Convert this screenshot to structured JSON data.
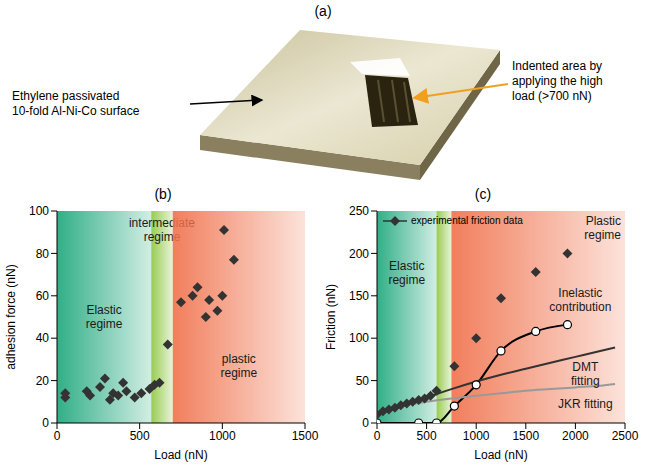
{
  "panel_a": {
    "title": "(a)",
    "surface_label": [
      "Ethylene passivated",
      "10-fold Al-Ni-Co surface"
    ],
    "indent_label": [
      "Indented area by",
      "applying the high",
      "load (>700 nN)"
    ]
  },
  "chart_data": [
    {
      "type": "scatter",
      "title": "(b)",
      "x_label": "Load (nN)",
      "y_label": "adhesion force (nN)",
      "xlim": [
        0,
        1500
      ],
      "xticks": [
        0,
        500,
        1000,
        1500
      ],
      "ylim": [
        0,
        100
      ],
      "yticks": [
        0,
        20,
        40,
        60,
        80,
        100
      ],
      "regions": [
        {
          "label": "Elastic regime",
          "from": 0,
          "to": 570,
          "color": "#1aa679"
        },
        {
          "label": "intermediate regime",
          "from": 570,
          "to": 700,
          "color": "#8dc63f"
        },
        {
          "label": "plastic regime",
          "from": 700,
          "to": 1500,
          "color": "#f0704a"
        }
      ],
      "x": [
        50,
        50,
        180,
        200,
        260,
        290,
        320,
        340,
        370,
        400,
        420,
        470,
        510,
        560,
        590,
        620,
        670,
        750,
        820,
        850,
        900,
        920,
        970,
        1000,
        1010,
        1070
      ],
      "values": [
        12,
        14,
        15,
        13,
        17,
        21,
        11,
        14,
        13,
        19,
        15,
        12,
        14,
        16,
        18,
        19,
        37,
        57,
        60,
        64,
        50,
        58,
        53,
        60,
        91,
        77
      ],
      "color": "#333333",
      "marker": "diamond"
    },
    {
      "type": "line",
      "title": "(c)",
      "x_label": "Load (nN)",
      "y_label": "Friction (nN)",
      "xlim": [
        0,
        2500
      ],
      "xticks": [
        0,
        500,
        1000,
        1500,
        2000,
        2500
      ],
      "ylim": [
        0,
        250
      ],
      "yticks": [
        0,
        50,
        100,
        150,
        200,
        250
      ],
      "legend": "upper left",
      "regions": [
        {
          "label": "Elastic regime",
          "from": 0,
          "to": 600,
          "color": "#1aa679"
        },
        {
          "from": 600,
          "to": 750,
          "color": "#8dc63f"
        },
        {
          "label": "Plastic regime",
          "from": 750,
          "to": 2500,
          "color": "#f0704a"
        }
      ],
      "series": [
        {
          "name": "experimental friction data",
          "type": "scatter",
          "color": "#333333",
          "marker": "diamond",
          "x": [
            0,
            60,
            120,
            180,
            240,
            300,
            360,
            420,
            480,
            540,
            600,
            780,
            1000,
            1250,
            1600,
            1920
          ],
          "values": [
            10,
            14,
            16,
            18,
            21,
            23,
            25,
            27,
            29,
            32,
            38,
            67,
            100,
            147,
            178,
            200
          ]
        },
        {
          "type": "line",
          "color": "#000000",
          "marker": "open_circle",
          "line_style": "solid",
          "x": [
            0,
            420,
            600,
            780,
            1000,
            1250,
            1600,
            1920
          ],
          "values": [
            0,
            0,
            0,
            20,
            45,
            85,
            108,
            116
          ]
        },
        {
          "type": "line",
          "color": "#333333",
          "marker": "none",
          "line_style": "solid",
          "x": [
            0,
            250,
            500,
            750,
            1000,
            1250,
            1500,
            1750,
            2000,
            2250,
            2400
          ],
          "values": [
            10,
            20,
            30,
            40,
            49,
            57,
            64,
            71,
            78,
            85,
            89
          ]
        },
        {
          "type": "line",
          "color": "#999999",
          "marker": "none",
          "line_style": "solid",
          "x": [
            0,
            250,
            500,
            750,
            1000,
            1250,
            1500,
            1750,
            2000,
            2250,
            2400
          ],
          "values": [
            13,
            20,
            25,
            29,
            32,
            35,
            38,
            40,
            42,
            44,
            46
          ]
        }
      ],
      "annotations": [
        {
          "text": "Inelastic contribution"
        },
        {
          "text": "DMT fitting"
        },
        {
          "text": "JKR fitting"
        }
      ]
    }
  ]
}
